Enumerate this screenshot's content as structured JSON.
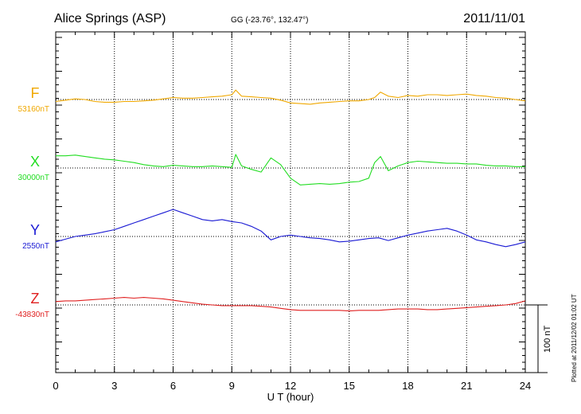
{
  "header": {
    "station": "Alice Springs (ASP)",
    "coords": "GG (-23.76°, 132.47°)",
    "date": "2011/11/01"
  },
  "plotted_note": "Plotted at 2011/12/02 01:02 UT",
  "scale_label": "100 nT",
  "chart_data": {
    "type": "line",
    "title": "Alice Springs (ASP)",
    "xlabel": "U T (hour)",
    "ylabel": "",
    "xlim": [
      0,
      24
    ],
    "x_ticks": [
      0,
      3,
      6,
      9,
      12,
      15,
      18,
      21,
      24
    ],
    "x_tick_labels": [
      "0",
      "3",
      "6",
      "9",
      "12",
      "15",
      "18",
      "21",
      "24"
    ],
    "grid": true,
    "scale_bar_nT": 100,
    "series": [
      {
        "name": "F",
        "baseline_label": "53160nT",
        "color": "#f0a800",
        "x": [
          0,
          0.5,
          1,
          1.5,
          2,
          2.5,
          3,
          3.5,
          4,
          4.5,
          5,
          5.5,
          6,
          6.5,
          7,
          7.5,
          8,
          8.5,
          9,
          9.2,
          9.5,
          10,
          10.5,
          11,
          11.5,
          12,
          12.5,
          13,
          13.5,
          14,
          14.5,
          15,
          15.5,
          16,
          16.3,
          16.6,
          17,
          17.5,
          18,
          18.5,
          19,
          19.5,
          20,
          20.5,
          21,
          21.5,
          22,
          22.5,
          23,
          23.5,
          24
        ],
        "y": [
          -3,
          -1,
          1,
          0,
          -3,
          -4,
          -4,
          -3,
          -3,
          -2,
          -1,
          1,
          3,
          2,
          2,
          3,
          4,
          5,
          7,
          14,
          5,
          4,
          3,
          2,
          -1,
          -5,
          -6,
          -7,
          -5,
          -4,
          -3,
          -2,
          -2,
          0,
          3,
          11,
          5,
          3,
          6,
          5,
          7,
          7,
          6,
          7,
          8,
          6,
          5,
          3,
          2,
          0,
          -2
        ]
      },
      {
        "name": "X",
        "baseline_label": "30000nT",
        "color": "#22dd22",
        "x": [
          0,
          0.5,
          1,
          1.5,
          2,
          2.5,
          3,
          3.5,
          4,
          4.5,
          5,
          5.5,
          6,
          6.5,
          7,
          7.5,
          8,
          8.5,
          9,
          9.2,
          9.5,
          10,
          10.5,
          11,
          11.5,
          12,
          12.5,
          13,
          13.5,
          14,
          14.5,
          15,
          15.5,
          16,
          16.3,
          16.6,
          17,
          17.5,
          18,
          18.5,
          19,
          19.5,
          20,
          20.5,
          21,
          21.5,
          22,
          22.5,
          23,
          23.5,
          24
        ],
        "y": [
          18,
          18,
          19,
          17,
          15,
          13,
          12,
          10,
          8,
          5,
          3,
          2,
          4,
          3,
          2,
          2,
          3,
          2,
          1,
          20,
          3,
          -2,
          -6,
          15,
          5,
          -15,
          -25,
          -24,
          -23,
          -24,
          -23,
          -21,
          -20,
          -15,
          8,
          17,
          -4,
          3,
          8,
          10,
          9,
          8,
          7,
          7,
          6,
          6,
          4,
          3,
          3,
          2,
          2
        ]
      },
      {
        "name": "Y",
        "baseline_label": "2550nT",
        "color": "#1a1ad4",
        "x": [
          0,
          0.5,
          1,
          1.5,
          2,
          2.5,
          3,
          3.5,
          4,
          4.5,
          5,
          5.5,
          6,
          6.5,
          7,
          7.5,
          8,
          8.5,
          9,
          9.5,
          10,
          10.5,
          11,
          11.5,
          12,
          12.5,
          13,
          13.5,
          14,
          14.5,
          15,
          15.5,
          16,
          16.5,
          17,
          17.5,
          18,
          18.5,
          19,
          19.5,
          20,
          20.5,
          21,
          21.5,
          22,
          22.5,
          23,
          23.5,
          24
        ],
        "y": [
          -8,
          -4,
          0,
          2,
          4,
          7,
          10,
          15,
          20,
          25,
          30,
          35,
          40,
          35,
          30,
          25,
          23,
          25,
          22,
          20,
          15,
          8,
          -5,
          0,
          2,
          0,
          -2,
          -3,
          -5,
          -8,
          -7,
          -5,
          -3,
          -2,
          -6,
          -2,
          2,
          5,
          8,
          10,
          12,
          8,
          2,
          -5,
          -8,
          -12,
          -15,
          -12,
          -8
        ]
      },
      {
        "name": "Z",
        "baseline_label": "-43830nT",
        "color": "#e02020",
        "x": [
          0,
          0.5,
          1,
          1.5,
          2,
          2.5,
          3,
          3.5,
          4,
          4.5,
          5,
          5.5,
          6,
          6.5,
          7,
          7.5,
          8,
          8.5,
          9,
          9.5,
          10,
          10.5,
          11,
          11.5,
          12,
          12.5,
          13,
          13.5,
          14,
          14.5,
          15,
          15.5,
          16,
          16.5,
          17,
          17.5,
          18,
          18.5,
          19,
          19.5,
          20,
          20.5,
          21,
          21.5,
          22,
          22.5,
          23,
          23.5,
          24
        ],
        "y": [
          5,
          6,
          6,
          7,
          8,
          9,
          10,
          11,
          10,
          11,
          10,
          9,
          7,
          5,
          3,
          1,
          0,
          -1,
          -1,
          -1,
          -1,
          -2,
          -3,
          -5,
          -7,
          -8,
          -8,
          -8,
          -8,
          -8,
          -9,
          -8,
          -8,
          -8,
          -7,
          -6,
          -6,
          -6,
          -7,
          -7,
          -6,
          -5,
          -4,
          -3,
          -2,
          -1,
          0,
          2,
          6
        ]
      }
    ]
  }
}
